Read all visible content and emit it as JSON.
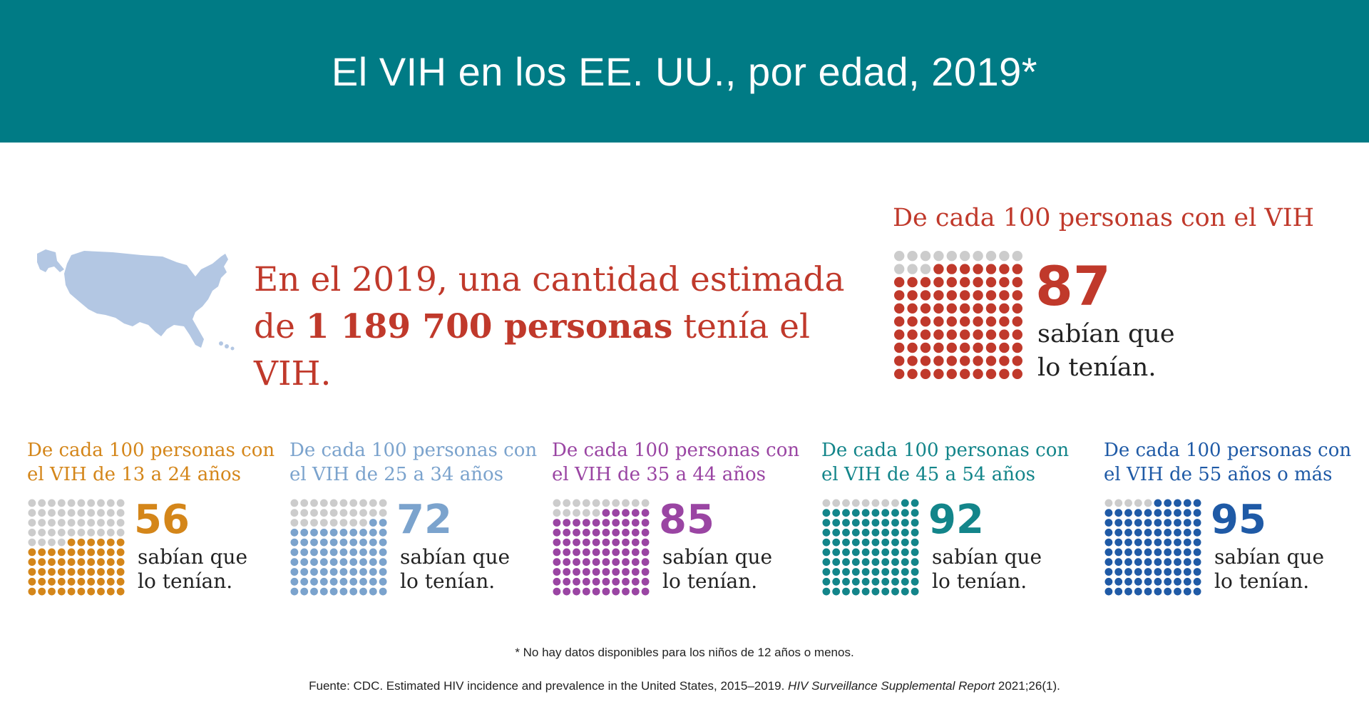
{
  "header": {
    "title": "El VIH en los EE. UU., por edad, 2019*"
  },
  "intro": {
    "line1": "En el 2019, una cantidad estimada",
    "line2_pre": "de ",
    "line2_bold": "1 189 700 personas",
    "line2_post": " tenía el VIH."
  },
  "overall": {
    "heading": "De cada 100 personas con el VIH",
    "value": 87,
    "number_label": "87",
    "text_line1": "sabían que",
    "text_line2": "lo tenían.",
    "color": "#c0392b"
  },
  "groups": [
    {
      "heading_line1": "De cada 100 personas con",
      "heading_line2": "el VIH de 13 a 24 años",
      "value": 56,
      "number_label": "56",
      "text_line1": "sabían que",
      "text_line2": "lo tenían.",
      "color": "#d4861a"
    },
    {
      "heading_line1": "De cada 100 personas con",
      "heading_line2": "el VIH de 25 a 34 años",
      "value": 72,
      "number_label": "72",
      "text_line1": "sabían que",
      "text_line2": "lo tenían.",
      "color": "#7ba3cd"
    },
    {
      "heading_line1": "De cada 100 personas con",
      "heading_line2": "el VIH de 35 a 44 años",
      "value": 85,
      "number_label": "85",
      "text_line1": "sabían que",
      "text_line2": "lo tenían.",
      "color": "#9a45a3"
    },
    {
      "heading_line1": "De cada 100 personas con",
      "heading_line2": "el VIH de 45 a 54 años",
      "value": 92,
      "number_label": "92",
      "text_line1": "sabían que",
      "text_line2": "lo tenían.",
      "color": "#13858a"
    },
    {
      "heading_line1": "De cada 100 personas con",
      "heading_line2": "el VIH de 55 años o más",
      "value": 95,
      "number_label": "95",
      "text_line1": "sabían que",
      "text_line2": "lo tenían.",
      "color": "#1f5aa6"
    }
  ],
  "colors": {
    "banner": "#007b85",
    "dot_empty": "#cccccc",
    "map": "#b3c7e3"
  },
  "map_icon": "united-states-map-icon",
  "footnote": "* No hay datos disponibles para los niños de 12 años o menos.",
  "source": {
    "prefix": "Fuente: CDC. Estimated HIV incidence and prevalence in the United States, 2015–2019. ",
    "italic": "HIV Surveillance Supplemental Report",
    "suffix": " 2021;26(1)."
  }
}
